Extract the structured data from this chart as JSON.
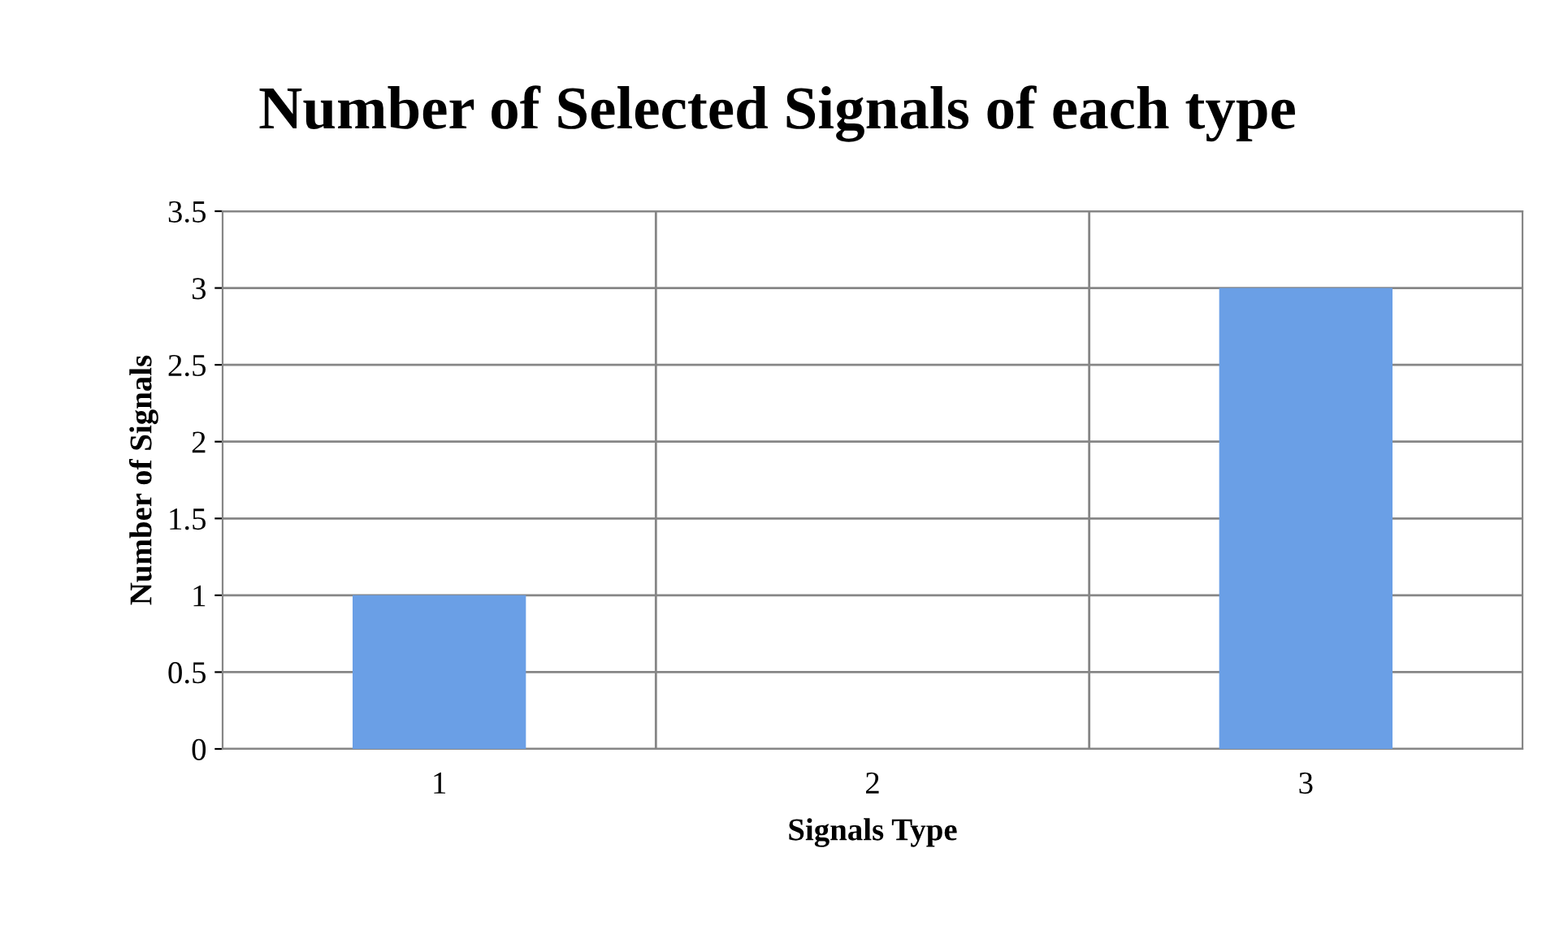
{
  "chart_data": {
    "type": "bar",
    "title": "Number of Selected Signals of each type",
    "xlabel": "Signals Type",
    "ylabel": "Number of Signals",
    "categories": [
      "1",
      "2",
      "3"
    ],
    "values": [
      1,
      0,
      3
    ],
    "color": "#6a9fe6",
    "ylim": [
      0,
      3.5
    ],
    "yticks": [
      0,
      0.5,
      1,
      1.5,
      2,
      2.5,
      3,
      3.5
    ],
    "grid": true,
    "legend": false
  }
}
